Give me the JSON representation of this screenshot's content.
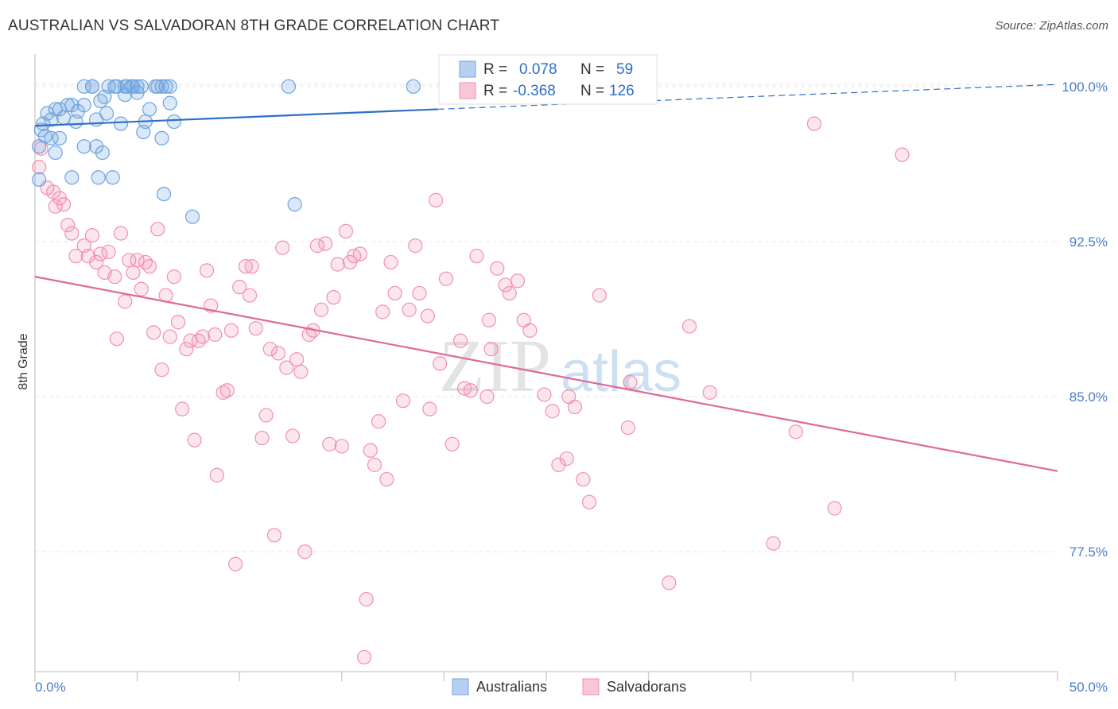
{
  "header": {
    "title": "AUSTRALIAN VS SALVADORAN 8TH GRADE CORRELATION CHART",
    "source": "Source: ZipAtlas.com"
  },
  "legend_box": {
    "row1": {
      "r_label": "R =",
      "r_value": "0.078",
      "n_label": "N =",
      "n_value": "59"
    },
    "row2": {
      "r_label": "R =",
      "r_value": "-0.368",
      "n_label": "N =",
      "n_value": "126"
    }
  },
  "bottom_legend": {
    "series1": "Australians",
    "series2": "Salvadorans"
  },
  "watermark": {
    "zip": "ZIP",
    "atlas": "atlas"
  },
  "colors": {
    "blue": "#6fa3e0",
    "blue_line": "#2f6fc8",
    "pink": "#f28fb0",
    "pink_line": "#e0689a",
    "grid": "#e6e6e6",
    "axis_label": "#4a7cc9"
  },
  "chart_data": {
    "type": "scatter",
    "title": "AUSTRALIAN VS SALVADORAN 8TH GRADE CORRELATION CHART",
    "xlabel": "",
    "ylabel": "8th Grade",
    "xlim": [
      0,
      50
    ],
    "ylim": [
      71.7,
      101.3
    ],
    "x_tick_labels": [
      "0.0%",
      "50.0%"
    ],
    "y_ticks": [
      77.5,
      85.0,
      92.5,
      100.0
    ],
    "y_tick_labels": [
      "77.5%",
      "85.0%",
      "92.5%",
      "100.0%"
    ],
    "grid": true,
    "legend_position": "top-center",
    "series": [
      {
        "name": "Australians",
        "color": "#6fa3e0",
        "r": 0.078,
        "n": 59,
        "trend": {
          "x": [
            0,
            19.7
          ],
          "y": [
            98.1,
            98.9
          ],
          "dashed_to": [
            50,
            100.1
          ]
        },
        "points": [
          [
            0.2,
            95.5
          ],
          [
            0.2,
            97.1
          ],
          [
            0.3,
            97.9
          ],
          [
            0.4,
            98.2
          ],
          [
            0.5,
            97.6
          ],
          [
            0.6,
            98.7
          ],
          [
            0.8,
            98.4
          ],
          [
            0.8,
            97.5
          ],
          [
            1.0,
            96.8
          ],
          [
            1.0,
            98.9
          ],
          [
            1.2,
            98.9
          ],
          [
            1.2,
            97.5
          ],
          [
            1.4,
            98.5
          ],
          [
            1.6,
            99.1
          ],
          [
            1.8,
            99.1
          ],
          [
            1.8,
            95.6
          ],
          [
            2.0,
            98.3
          ],
          [
            2.1,
            98.8
          ],
          [
            2.4,
            99.1
          ],
          [
            2.4,
            97.1
          ],
          [
            2.4,
            100.0
          ],
          [
            2.8,
            100.0
          ],
          [
            2.8,
            100.0
          ],
          [
            3.0,
            98.4
          ],
          [
            3.0,
            97.1
          ],
          [
            3.1,
            95.6
          ],
          [
            3.2,
            99.3
          ],
          [
            3.3,
            96.8
          ],
          [
            3.4,
            99.5
          ],
          [
            3.5,
            98.7
          ],
          [
            3.6,
            100.0
          ],
          [
            3.8,
            95.6
          ],
          [
            3.9,
            100.0
          ],
          [
            4.0,
            100.0
          ],
          [
            4.2,
            98.2
          ],
          [
            4.4,
            100.0
          ],
          [
            4.4,
            99.6
          ],
          [
            4.5,
            100.0
          ],
          [
            4.7,
            100.0
          ],
          [
            4.8,
            100.0
          ],
          [
            5.0,
            99.7
          ],
          [
            5.0,
            100.0
          ],
          [
            5.2,
            100.0
          ],
          [
            5.3,
            97.8
          ],
          [
            5.4,
            98.3
          ],
          [
            5.6,
            98.9
          ],
          [
            5.9,
            100.0
          ],
          [
            6.0,
            100.0
          ],
          [
            6.2,
            97.5
          ],
          [
            6.2,
            100.0
          ],
          [
            6.3,
            94.8
          ],
          [
            6.4,
            100.0
          ],
          [
            6.6,
            100.0
          ],
          [
            6.6,
            99.2
          ],
          [
            6.8,
            98.3
          ],
          [
            7.7,
            93.7
          ],
          [
            12.4,
            100.0
          ],
          [
            12.7,
            94.3
          ],
          [
            18.5,
            100.0
          ]
        ]
      },
      {
        "name": "Salvadorans",
        "color": "#f28fb0",
        "r": -0.368,
        "n": 126,
        "trend": {
          "x": [
            0,
            50
          ],
          "y": [
            90.8,
            81.4
          ]
        },
        "points": [
          [
            0.2,
            96.1
          ],
          [
            0.3,
            97.0
          ],
          [
            0.6,
            95.1
          ],
          [
            0.9,
            94.9
          ],
          [
            1.0,
            94.2
          ],
          [
            1.2,
            94.6
          ],
          [
            1.4,
            94.3
          ],
          [
            1.6,
            93.3
          ],
          [
            1.8,
            92.9
          ],
          [
            2.0,
            91.8
          ],
          [
            2.4,
            92.3
          ],
          [
            2.6,
            91.8
          ],
          [
            2.8,
            92.8
          ],
          [
            3.0,
            91.5
          ],
          [
            3.2,
            91.9
          ],
          [
            3.4,
            91.0
          ],
          [
            3.6,
            92.0
          ],
          [
            3.9,
            90.8
          ],
          [
            4.0,
            87.8
          ],
          [
            4.2,
            92.9
          ],
          [
            4.4,
            89.6
          ],
          [
            4.6,
            91.6
          ],
          [
            4.8,
            91.0
          ],
          [
            5.0,
            91.6
          ],
          [
            5.2,
            90.2
          ],
          [
            5.4,
            91.5
          ],
          [
            5.6,
            91.3
          ],
          [
            5.8,
            88.1
          ],
          [
            6.0,
            93.1
          ],
          [
            6.2,
            86.3
          ],
          [
            6.4,
            89.9
          ],
          [
            6.6,
            87.9
          ],
          [
            6.8,
            90.8
          ],
          [
            7.0,
            88.6
          ],
          [
            7.2,
            84.4
          ],
          [
            7.4,
            87.3
          ],
          [
            7.6,
            87.7
          ],
          [
            7.8,
            82.9
          ],
          [
            8.0,
            87.7
          ],
          [
            8.2,
            87.9
          ],
          [
            8.4,
            91.1
          ],
          [
            8.6,
            89.4
          ],
          [
            8.8,
            88.0
          ],
          [
            8.9,
            81.2
          ],
          [
            9.2,
            85.2
          ],
          [
            9.4,
            85.3
          ],
          [
            9.6,
            88.2
          ],
          [
            9.8,
            76.9
          ],
          [
            10.0,
            90.3
          ],
          [
            10.3,
            91.3
          ],
          [
            10.5,
            89.9
          ],
          [
            10.6,
            91.3
          ],
          [
            10.8,
            88.3
          ],
          [
            11.1,
            83.0
          ],
          [
            11.3,
            84.1
          ],
          [
            11.5,
            87.3
          ],
          [
            11.7,
            78.3
          ],
          [
            11.9,
            87.1
          ],
          [
            12.1,
            92.2
          ],
          [
            12.3,
            86.4
          ],
          [
            12.6,
            83.1
          ],
          [
            12.8,
            86.8
          ],
          [
            13.0,
            86.2
          ],
          [
            13.2,
            77.5
          ],
          [
            13.4,
            88.0
          ],
          [
            13.6,
            88.2
          ],
          [
            13.8,
            92.3
          ],
          [
            14.0,
            89.2
          ],
          [
            14.2,
            92.4
          ],
          [
            14.4,
            82.7
          ],
          [
            14.6,
            89.8
          ],
          [
            14.8,
            91.4
          ],
          [
            15.0,
            82.6
          ],
          [
            15.2,
            93.0
          ],
          [
            15.4,
            91.5
          ],
          [
            15.6,
            91.8
          ],
          [
            15.9,
            91.9
          ],
          [
            16.2,
            75.2
          ],
          [
            16.4,
            82.4
          ],
          [
            16.6,
            81.7
          ],
          [
            16.8,
            83.8
          ],
          [
            17.0,
            89.1
          ],
          [
            17.2,
            81.0
          ],
          [
            17.4,
            91.5
          ],
          [
            17.6,
            90.0
          ],
          [
            18.0,
            84.8
          ],
          [
            18.3,
            89.2
          ],
          [
            18.6,
            92.3
          ],
          [
            18.8,
            90.0
          ],
          [
            19.2,
            88.9
          ],
          [
            19.3,
            84.4
          ],
          [
            19.6,
            94.5
          ],
          [
            19.8,
            86.6
          ],
          [
            20.1,
            90.7
          ],
          [
            20.4,
            82.7
          ],
          [
            20.8,
            87.7
          ],
          [
            21.0,
            85.4
          ],
          [
            21.3,
            85.3
          ],
          [
            21.6,
            91.8
          ],
          [
            22.1,
            85.0
          ],
          [
            22.2,
            88.7
          ],
          [
            22.3,
            87.3
          ],
          [
            22.6,
            91.2
          ],
          [
            23.0,
            90.4
          ],
          [
            23.2,
            90.0
          ],
          [
            23.6,
            90.6
          ],
          [
            23.9,
            88.7
          ],
          [
            24.2,
            88.2
          ],
          [
            24.9,
            85.1
          ],
          [
            25.3,
            84.3
          ],
          [
            25.6,
            81.7
          ],
          [
            26.0,
            82.0
          ],
          [
            26.1,
            85.0
          ],
          [
            26.4,
            84.5
          ],
          [
            26.8,
            81.0
          ],
          [
            27.1,
            79.9
          ],
          [
            27.6,
            89.9
          ],
          [
            29.0,
            83.5
          ],
          [
            29.1,
            85.7
          ],
          [
            31.0,
            76.0
          ],
          [
            32.0,
            88.4
          ],
          [
            33.0,
            85.2
          ],
          [
            36.1,
            77.9
          ],
          [
            37.2,
            83.3
          ],
          [
            38.1,
            98.2
          ],
          [
            39.1,
            79.6
          ],
          [
            42.4,
            96.7
          ],
          [
            16.1,
            72.4
          ]
        ]
      }
    ]
  }
}
